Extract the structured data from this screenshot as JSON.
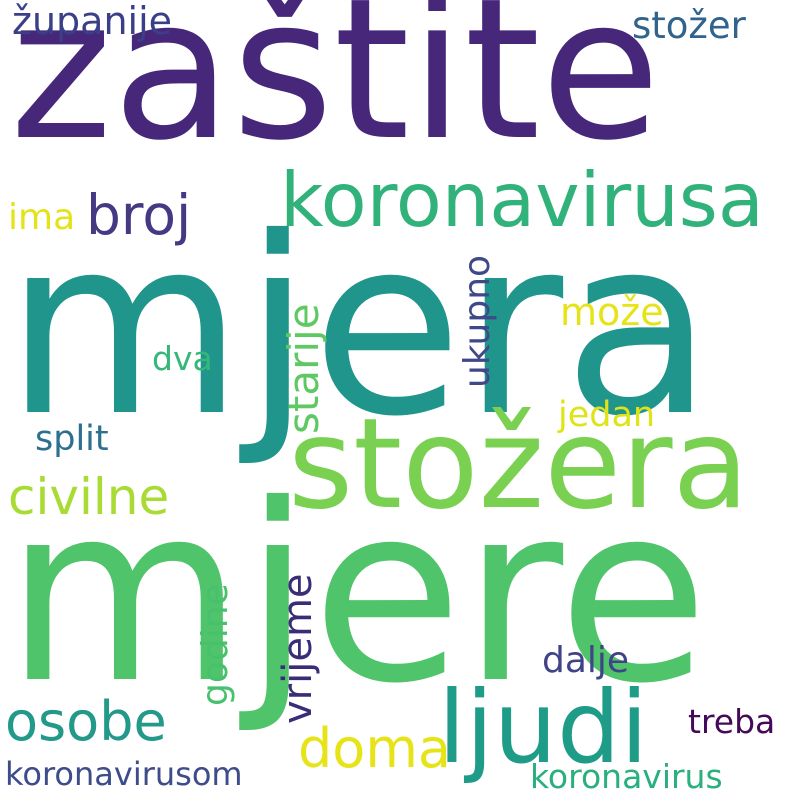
{
  "words": [
    {
      "text": "zaštite",
      "color": "#46277a"
    },
    {
      "text": "mjera",
      "color": "#20958b"
    },
    {
      "text": "mjere",
      "color": "#50c46a"
    },
    {
      "text": "stožera",
      "color": "#7ad151"
    },
    {
      "text": "koronavirusa",
      "color": "#30b27a"
    },
    {
      "text": "ljudi",
      "color": "#1f9c88"
    },
    {
      "text": "broj",
      "color": "#433a83"
    },
    {
      "text": "civilne",
      "color": "#a8db34"
    },
    {
      "text": "osobe",
      "color": "#23998a"
    },
    {
      "text": "doma",
      "color": "#e6e419"
    },
    {
      "text": "županije",
      "color": "#3b3f87"
    },
    {
      "text": "stožer",
      "color": "#31638d"
    },
    {
      "text": "ima",
      "color": "#e4e31a"
    },
    {
      "text": "može",
      "color": "#e6e419"
    },
    {
      "text": "dva",
      "color": "#35b779"
    },
    {
      "text": "starije",
      "color": "#5ec962"
    },
    {
      "text": "ukupno",
      "color": "#3f4889"
    },
    {
      "text": "jedan",
      "color": "#dfe318"
    },
    {
      "text": "split",
      "color": "#2c6f8e"
    },
    {
      "text": "vrijeme",
      "color": "#3b2c78"
    },
    {
      "text": "godine",
      "color": "#48c16e"
    },
    {
      "text": "dalje",
      "color": "#404387"
    },
    {
      "text": "treba",
      "color": "#45095a"
    },
    {
      "text": "koronavirusom",
      "color": "#3e4c8a"
    },
    {
      "text": "koronavirus",
      "color": "#2aaf7f"
    }
  ]
}
